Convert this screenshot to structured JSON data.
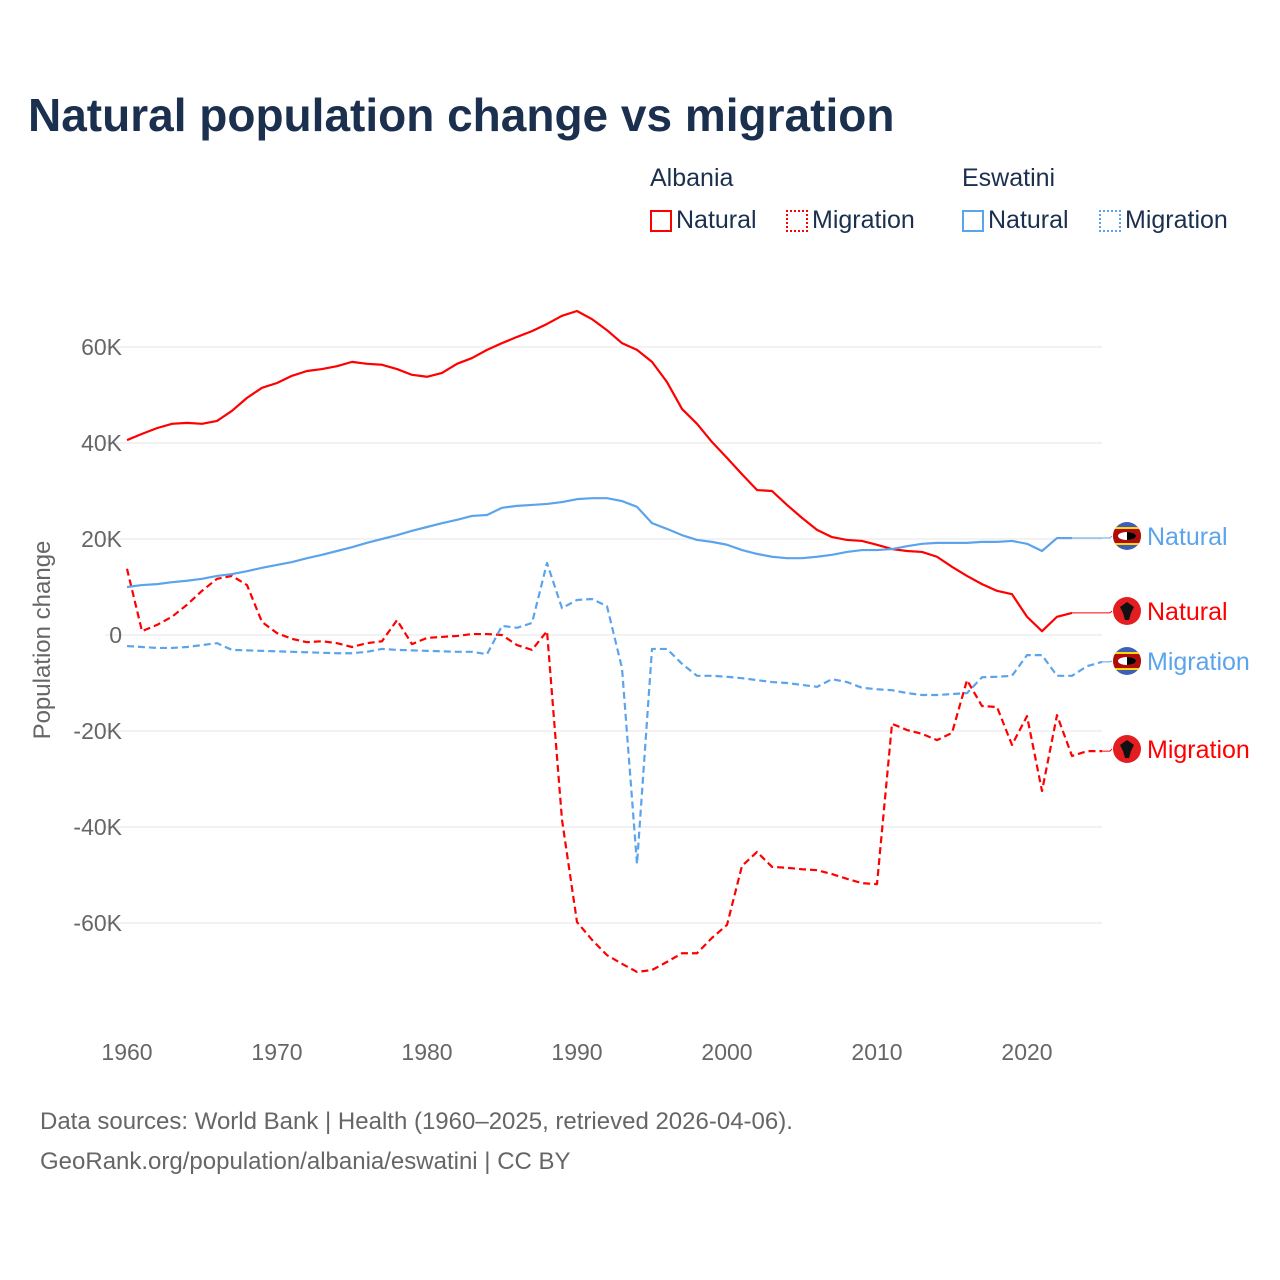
{
  "title": "Natural population change vs migration",
  "legend": {
    "groups": [
      {
        "name": "Albania",
        "items": [
          "Natural",
          "Migration"
        ]
      },
      {
        "name": "Eswatini",
        "items": [
          "Natural",
          "Migration"
        ]
      }
    ]
  },
  "footer": {
    "line1": "Data sources: World Bank | Health (1960–2025, retrieved 2026-04-06).",
    "line2": "GeoRank.org/population/albania/eswatini | CC BY"
  },
  "colors": {
    "albania": "#ff0000",
    "eswatini": "#5ba4ec"
  },
  "chart_data": {
    "type": "line",
    "title": "Natural population change vs migration",
    "xlabel": "",
    "ylabel": "Population change",
    "xlim": [
      1960,
      2025
    ],
    "ylim": [
      -80000,
      75000
    ],
    "x_ticks": [
      1960,
      1970,
      1980,
      1990,
      2000,
      2010,
      2020
    ],
    "y_ticks": [
      {
        "v": 60,
        "label": "60K"
      },
      {
        "v": 40,
        "label": "40K"
      },
      {
        "v": 20,
        "label": "20K"
      },
      {
        "v": 0,
        "label": "0"
      },
      {
        "v": -20,
        "label": "-20K"
      },
      {
        "v": -40,
        "label": "-40K"
      },
      {
        "v": -60,
        "label": "-60K"
      }
    ],
    "units": "thousands",
    "series": [
      {
        "name": "Natural",
        "country": "Albania",
        "color": "#ff0000",
        "dash": false,
        "start": 1960,
        "label_y": 611,
        "values": [
          40.6,
          41.9,
          43.1,
          44,
          44.2,
          44,
          44.6,
          46.7,
          49.4,
          51.5,
          52.5,
          54,
          55,
          55.4,
          56,
          56.9,
          56.5,
          56.3,
          55.4,
          54.2,
          53.8,
          54.6,
          56.5,
          57.7,
          59.4,
          60.8,
          62.1,
          63.3,
          64.8,
          66.5,
          67.5,
          65.8,
          63.5,
          60.8,
          59.4,
          56.9,
          52.7,
          47.1,
          44,
          40.2,
          36.9,
          33.5,
          30.2,
          30,
          27.1,
          24.4,
          21.9,
          20.4,
          19.8,
          19.6,
          18.8,
          17.9,
          17.5,
          17.3,
          16.3,
          14.2,
          12.3,
          10.6,
          9.2,
          8.5,
          3.8,
          0.8,
          3.8,
          4.6
        ]
      },
      {
        "name": "Migration",
        "country": "Albania",
        "color": "#ff0000",
        "dash": true,
        "start": 1960,
        "label_y": 749,
        "values": [
          13.8,
          0.8,
          2.1,
          3.8,
          6.3,
          9.2,
          11.7,
          12.3,
          10.4,
          2.7,
          0.4,
          -0.8,
          -1.5,
          -1.3,
          -1.7,
          -2.5,
          -1.7,
          -1.3,
          3.1,
          -1.9,
          -0.6,
          -0.4,
          -0.2,
          0.2,
          0.2,
          0,
          -2.1,
          -3.1,
          0.8,
          -38.5,
          -59.8,
          -63.5,
          -66.7,
          -68.5,
          -70.2,
          -69.8,
          -68.1,
          -66.3,
          -66.3,
          -63.1,
          -60.4,
          -48.1,
          -45.2,
          -48.3,
          -48.5,
          -48.8,
          -49,
          -49.8,
          -50.8,
          -51.7,
          -51.9,
          -18.5,
          -19.8,
          -20.6,
          -21.9,
          -20.4,
          -9.4,
          -14.8,
          -15,
          -22.9,
          -16.9,
          -32.5,
          -16.7,
          -25.2,
          -24.2,
          -24.2
        ]
      },
      {
        "name": "Natural",
        "country": "Eswatini",
        "color": "#5ba4ec",
        "dash": false,
        "start": 1960,
        "label_y": 536,
        "values": [
          10,
          10.4,
          10.6,
          11,
          11.3,
          11.7,
          12.3,
          12.7,
          13.3,
          14,
          14.6,
          15.2,
          16,
          16.7,
          17.5,
          18.3,
          19.2,
          20,
          20.8,
          21.7,
          22.5,
          23.3,
          24,
          24.8,
          25,
          26.5,
          26.9,
          27.1,
          27.3,
          27.7,
          28.3,
          28.5,
          28.5,
          27.9,
          26.7,
          23.3,
          22.1,
          20.8,
          19.8,
          19.4,
          18.8,
          17.7,
          16.9,
          16.3,
          16,
          16,
          16.3,
          16.7,
          17.3,
          17.7,
          17.7,
          17.9,
          18.5,
          19,
          19.2,
          19.2,
          19.2,
          19.4,
          19.4,
          19.6,
          19,
          17.5,
          20.2,
          20.2
        ]
      },
      {
        "name": "Migration",
        "country": "Eswatini",
        "color": "#5ba4ec",
        "dash": true,
        "start": 1960,
        "label_y": 661,
        "values": [
          -2.3,
          -2.5,
          -2.7,
          -2.7,
          -2.5,
          -2.1,
          -1.7,
          -3.1,
          -3.2,
          -3.3,
          -3.4,
          -3.5,
          -3.6,
          -3.7,
          -3.8,
          -3.8,
          -3.5,
          -2.9,
          -3.1,
          -3.2,
          -3.3,
          -3.4,
          -3.5,
          -3.5,
          -4,
          1.9,
          1.5,
          2.5,
          15,
          5.6,
          7.3,
          7.5,
          6,
          -6.9,
          -47.7,
          -2.9,
          -2.9,
          -6,
          -8.5,
          -8.5,
          -8.7,
          -9,
          -9.4,
          -9.8,
          -10,
          -10.4,
          -10.8,
          -9.2,
          -9.8,
          -11,
          -11.3,
          -11.5,
          -12.1,
          -12.5,
          -12.5,
          -12.3,
          -12.1,
          -8.8,
          -8.7,
          -8.5,
          -4.2,
          -4.2,
          -8.5,
          -8.5,
          -6.5,
          -5.6
        ]
      }
    ]
  }
}
